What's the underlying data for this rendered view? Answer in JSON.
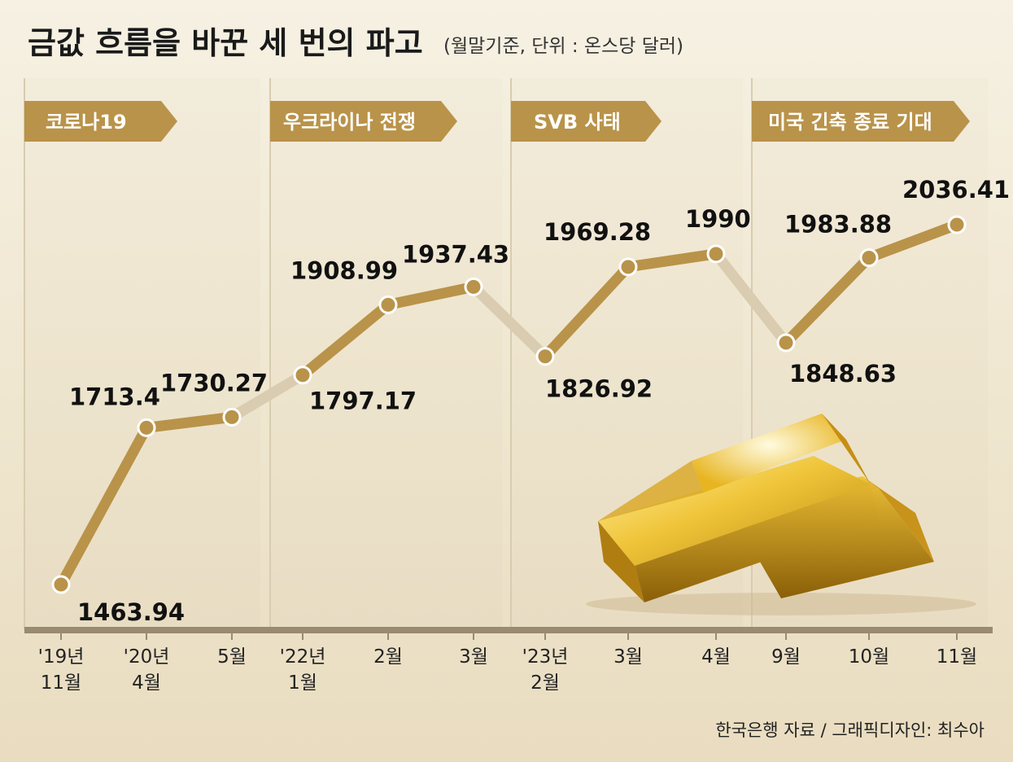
{
  "title": "금값 흐름을 바꾼 세 번의 파고",
  "subtitle": "(월말기준, 단위 : 온스당 달러)",
  "source": "한국은행 자료 / 그래픽디자인: 최수아",
  "colors": {
    "line": "#b99349",
    "line_faded": "#d9ccb0",
    "banner": "#b99349",
    "axis": "#9a8a72",
    "background": "#f2ebd8"
  },
  "chart_data": {
    "type": "line",
    "title": "금값 흐름을 바꾼 세 번의 파고",
    "subtitle": "(월말기준, 단위 : 온스당 달러)",
    "categories": [
      "'19년 11월",
      "'20년 4월",
      "5월",
      "'22년 1월",
      "2월",
      "3월",
      "'23년 2월",
      "3월",
      "4월",
      "9월",
      "10월",
      "11월"
    ],
    "values": [
      1463.94,
      1713.4,
      1730.27,
      1797.17,
      1908.99,
      1937.43,
      1826.92,
      1969.28,
      1990,
      1848.63,
      1983.88,
      2036.41
    ],
    "value_labels": [
      "1463.94",
      "1713.4",
      "1730.27",
      "1797.17",
      "1908.99",
      "1937.43",
      "1826.92",
      "1969.28",
      "1990",
      "1848.63",
      "1983.88",
      "2036.41"
    ],
    "ylim": [
      1440,
      2060
    ],
    "grid": false,
    "events": [
      {
        "label": "코로나19",
        "start_index": 0,
        "end_index": 2
      },
      {
        "label": "우크라이나 전쟁",
        "start_index": 3,
        "end_index": 5
      },
      {
        "label": "SVB 사태",
        "start_index": 6,
        "end_index": 8
      },
      {
        "label": "미국 긴축 종료 기대",
        "start_index": 9,
        "end_index": 11
      }
    ]
  }
}
